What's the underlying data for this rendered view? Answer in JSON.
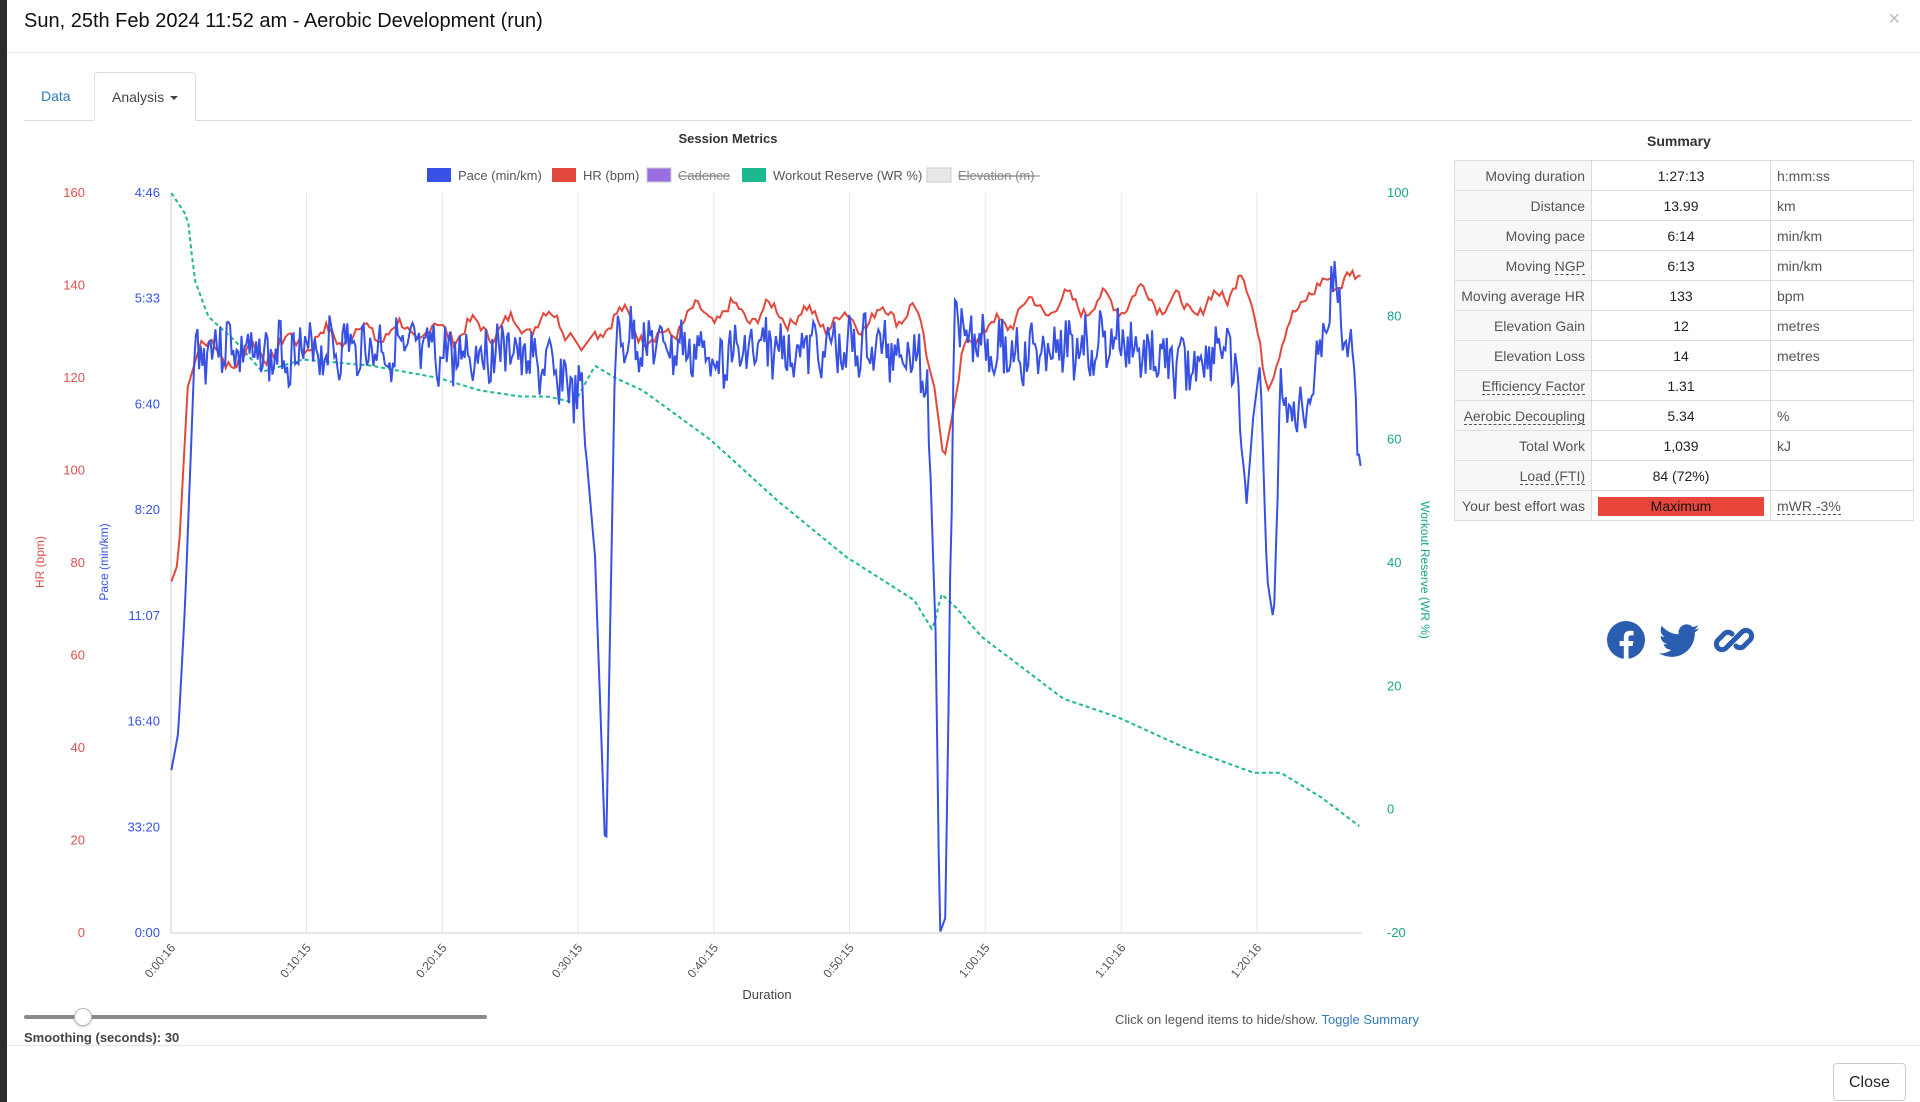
{
  "modal": {
    "title": "Sun, 25th Feb 2024 11:52 am - Aerobic Development (run)",
    "close_symbol": "×"
  },
  "tabs": [
    {
      "label": "Data"
    },
    {
      "label": "Analysis"
    }
  ],
  "chart_data": {
    "type": "line",
    "title": "Session Metrics",
    "xlabel": "Duration",
    "x_tick_labels": [
      "0:00:16",
      "0:10:15",
      "0:20:15",
      "0:30:15",
      "0:40:15",
      "0:50:15",
      "1:00:15",
      "1:10:16",
      "1:20:16"
    ],
    "x_range_minutes": [
      0.27,
      88
    ],
    "legend": [
      {
        "name": "Pace (min/km)",
        "color": "#3651e4",
        "hidden": false
      },
      {
        "name": "HR (bpm)",
        "color": "#e2493c",
        "hidden": false
      },
      {
        "name": "Cadence",
        "color": "#9b6fe0",
        "hidden": true
      },
      {
        "name": "Workout Reserve (WR %)",
        "color": "#1db890",
        "hidden": false
      },
      {
        "name": "Elevation (m)",
        "color": "#e8e8e8",
        "hidden": true
      }
    ],
    "axes": {
      "hr": {
        "label": "HR (bpm)",
        "ticks": [
          "160",
          "140",
          "120",
          "100",
          "80",
          "60",
          "40",
          "20",
          "0"
        ],
        "range": [
          0,
          160
        ],
        "color": "#d9534f"
      },
      "pace": {
        "label": "Pace (min/km)",
        "ticks": [
          "4:46",
          "5:33",
          "6:40",
          "8:20",
          "11:07",
          "16:40",
          "33:20",
          "0:00"
        ],
        "color": "#3651e4"
      },
      "wr": {
        "label": "Workout Reserve (WR %)",
        "ticks": [
          "100",
          "80",
          "60",
          "40",
          "20",
          "0",
          "-20"
        ],
        "range": [
          -20,
          100
        ],
        "color": "#1aa58a"
      }
    },
    "series": [
      {
        "name": "HR (bpm)",
        "x": [
          0.3,
          0.8,
          1.5,
          2.5,
          4,
          6,
          10,
          15,
          20,
          25,
          29,
          30.5,
          32,
          34,
          36,
          38,
          40,
          45,
          50,
          52,
          55,
          56.5,
          57.2,
          58.2,
          59,
          60,
          63,
          66,
          70,
          72,
          75,
          78,
          79,
          80,
          81,
          82.5,
          84,
          86,
          87,
          88
        ],
        "y": [
          76,
          80,
          118,
          128,
          124,
          125,
          128,
          130,
          130,
          131,
          133,
          126,
          132,
          133,
          127,
          133,
          134,
          134,
          132,
          133,
          135,
          118,
          102,
          118,
          131,
          129,
          135,
          136,
          136,
          138,
          135,
          137,
          145,
          132,
          120,
          129,
          140,
          139,
          145,
          139
        ]
      },
      {
        "name": "Pace (min/km)",
        "x": [
          0.3,
          0.8,
          1.3,
          2,
          4,
          6,
          8,
          10,
          15,
          20,
          25,
          29,
          30.5,
          31.5,
          32.3,
          33,
          35,
          37,
          40,
          45,
          50,
          55,
          56,
          56.6,
          56.9,
          57.3,
          58,
          59,
          60,
          63,
          66,
          70,
          72,
          75,
          78,
          79,
          79.5,
          80,
          80.5,
          81,
          81.5,
          82,
          83.5,
          85,
          86,
          87,
          88
        ],
        "ypos": [
          0.78,
          0.73,
          0.56,
          0.22,
          0.2,
          0.22,
          0.22,
          0.21,
          0.21,
          0.22,
          0.21,
          0.25,
          0.28,
          0.49,
          0.91,
          0.2,
          0.2,
          0.21,
          0.22,
          0.21,
          0.21,
          0.21,
          0.26,
          0.6,
          1.0,
          0.98,
          0.16,
          0.18,
          0.2,
          0.22,
          0.21,
          0.2,
          0.22,
          0.24,
          0.2,
          0.29,
          0.42,
          0.3,
          0.23,
          0.52,
          0.58,
          0.27,
          0.31,
          0.2,
          0.12,
          0.2,
          0.37
        ]
      },
      {
        "name": "Workout Reserve (WR %)",
        "x": [
          0.3,
          1.5,
          2,
          3,
          5,
          7,
          10,
          15,
          20,
          23,
          26,
          28,
          30,
          31.5,
          33,
          35,
          40,
          45,
          50,
          55,
          56.4,
          57,
          58,
          60,
          63,
          66,
          70,
          75,
          80,
          82,
          85,
          88
        ],
        "y": [
          100,
          96,
          86,
          80,
          76,
          71,
          73,
          72,
          70,
          68,
          67,
          67,
          66,
          72,
          70,
          68,
          60,
          50,
          41,
          34,
          29,
          35,
          33,
          28,
          23,
          18,
          15,
          10,
          6,
          6,
          2,
          -3
        ]
      }
    ]
  },
  "summary": {
    "title": "Summary",
    "rows": [
      {
        "label": "Moving duration",
        "value": "1:27:13",
        "unit": "h:mm:ss"
      },
      {
        "label": "Distance",
        "value": "13.99",
        "unit": "km"
      },
      {
        "label": "Moving pace",
        "value": "6:14",
        "unit": "min/km"
      },
      {
        "label": "Moving NGP",
        "value": "6:13",
        "unit": "min/km"
      },
      {
        "label": "Moving average HR",
        "value": "133",
        "unit": "bpm"
      },
      {
        "label": "Elevation Gain",
        "value": "12",
        "unit": "metres"
      },
      {
        "label": "Elevation Loss",
        "value": "14",
        "unit": "metres"
      },
      {
        "label": "Efficiency Factor",
        "value": "1.31",
        "unit": ""
      },
      {
        "label": "Aerobic Decoupling",
        "value": "5.34",
        "unit": "%"
      },
      {
        "label": "Total Work",
        "value": "1,039",
        "unit": "kJ"
      },
      {
        "label": "Load (FTI)",
        "value": "84 (72%)",
        "unit": ""
      },
      {
        "label": "Your best effort was",
        "value": "Maximum",
        "unit": "mWR -3%"
      }
    ],
    "effort_color": "#e8463a"
  },
  "share": {
    "icons": [
      "facebook-icon",
      "twitter-icon",
      "link-icon"
    ],
    "color": "#2a5db0"
  },
  "controls": {
    "smoothing_label": "Smoothing (seconds): 30",
    "smoothing_value": 30,
    "hint_text": "Click on legend items to hide/show.",
    "toggle_link": "Toggle Summary"
  },
  "footer": {
    "close_label": "Close"
  }
}
